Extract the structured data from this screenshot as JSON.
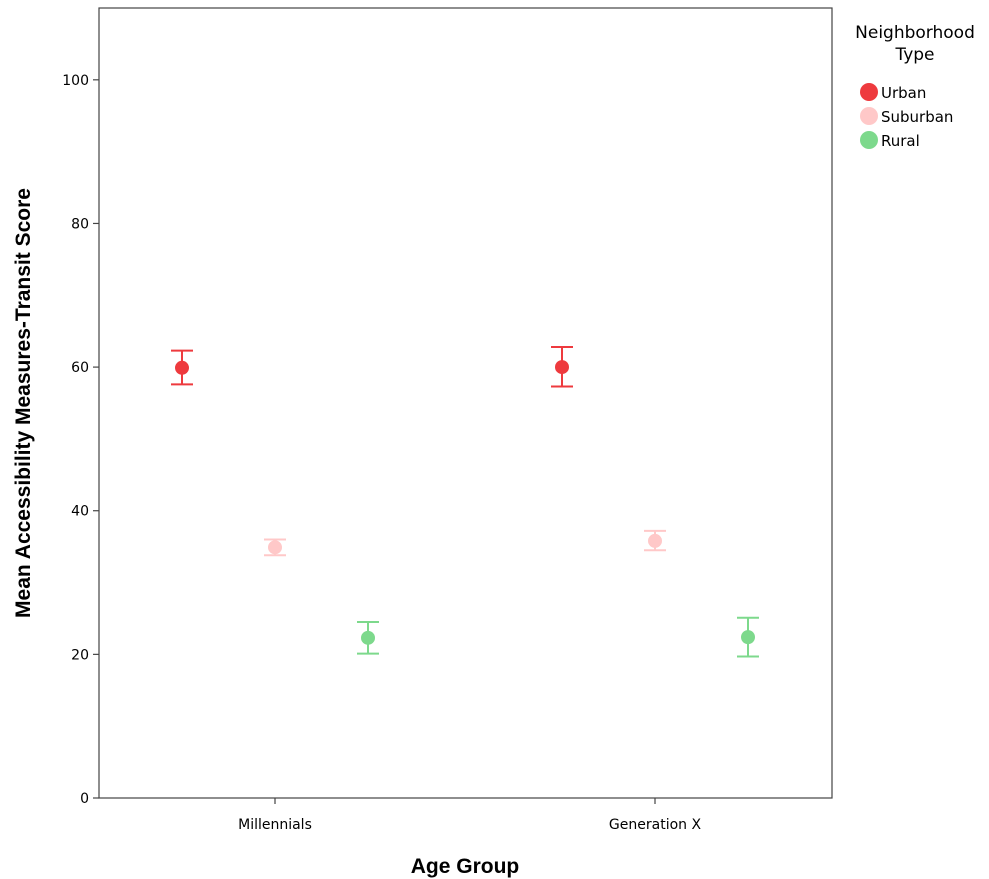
{
  "chart_data": {
    "type": "scatter",
    "subtype": "error-bar-means",
    "xlabel": "Age Group",
    "ylabel": "Mean Accessibility Measures-Transit Score",
    "ylim": [
      0,
      110
    ],
    "yticks": [
      0,
      20,
      40,
      60,
      80,
      100
    ],
    "categories": [
      "Millennials",
      "Generation X"
    ],
    "grid": false,
    "legend": {
      "title_lines": [
        "Neighborhood",
        "Type"
      ],
      "placement": "right"
    },
    "series": [
      {
        "name": "Urban",
        "color": "#ee3a3e",
        "values": [
          59.9,
          60.0
        ],
        "error_low": [
          57.6,
          57.3
        ],
        "error_high": [
          62.3,
          62.8
        ]
      },
      {
        "name": "Suburban",
        "color": "#ffc8c8",
        "values": [
          34.9,
          35.8
        ],
        "error_low": [
          33.8,
          34.5
        ],
        "error_high": [
          36.0,
          37.2
        ]
      },
      {
        "name": "Rural",
        "color": "#7dd98c",
        "values": [
          22.3,
          22.4
        ],
        "error_low": [
          20.1,
          19.7
        ],
        "error_high": [
          24.5,
          25.1
        ]
      }
    ]
  }
}
